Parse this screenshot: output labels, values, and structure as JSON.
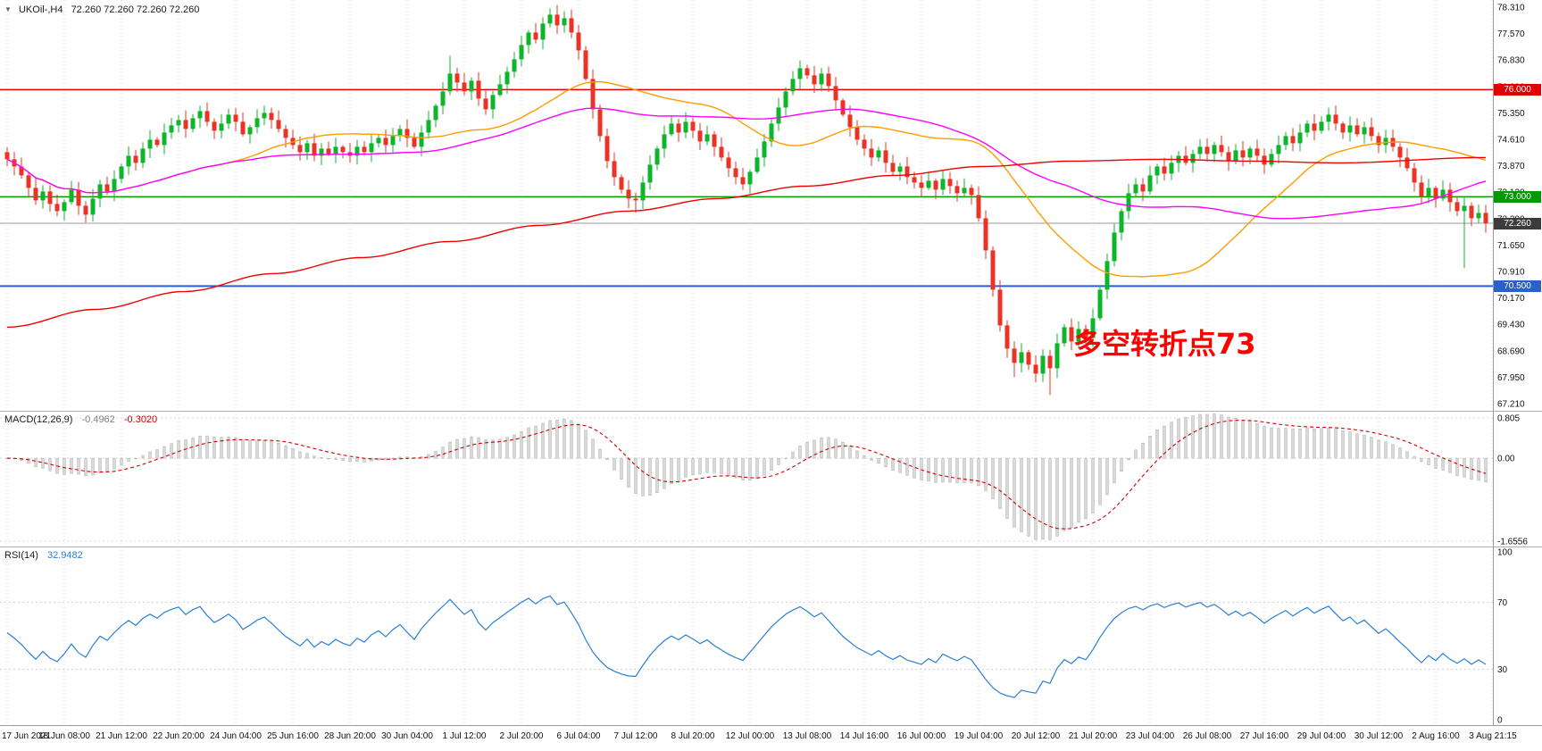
{
  "chart": {
    "marker_icon": "▼",
    "title": "UKOil-,H4",
    "ohlc_text": "72.260 72.260 72.260 72.260"
  },
  "annotation": {
    "text": "多空转折点73",
    "color": "#ff0000"
  },
  "levels": {
    "resistance": {
      "label": "76.000",
      "price": 76.0,
      "color": "#e00000"
    },
    "pivot": {
      "label": "73.000",
      "price": 73.0,
      "color": "#009a00"
    },
    "current": {
      "label": "72.260",
      "price": 72.26,
      "color": "#3c3c3c"
    },
    "support": {
      "label": "70.500",
      "price": 70.5,
      "color": "#2a5fd0"
    }
  },
  "indicators": {
    "macd": {
      "name": "MACD(12,26,9)",
      "main_value": "-0.4962",
      "signal_value": "-0.3020",
      "fast": 12,
      "slow": 26,
      "signal": 9,
      "axis_labels": [
        "0.805",
        "0.00",
        "-1.6556"
      ],
      "axis_values": [
        0.805,
        0,
        -1.6556
      ],
      "histogram_color": "#d9d9d9",
      "histogram_border": "#a6a6a6",
      "signal_color": "#d40000"
    },
    "rsi": {
      "name": "RSI(14)",
      "value": "32.9482",
      "period": 14,
      "levels": [
        70,
        30
      ],
      "axis_labels": [
        "100",
        "70",
        "30",
        "0"
      ],
      "axis_values": [
        100,
        70,
        30,
        0
      ],
      "line_color": "#2a7fd4"
    }
  },
  "price_axis": {
    "max": 78.31,
    "min": 67.21,
    "ticks": [
      "78.310",
      "77.570",
      "76.830",
      "76.090",
      "75.350",
      "74.610",
      "73.870",
      "73.130",
      "72.390",
      "71.650",
      "70.910",
      "70.170",
      "69.430",
      "68.690",
      "67.950",
      "67.210"
    ],
    "tick_values": [
      78.31,
      77.57,
      76.83,
      76.09,
      75.35,
      74.61,
      73.87,
      73.13,
      72.39,
      71.65,
      70.91,
      70.17,
      69.43,
      68.69,
      67.95,
      67.21
    ]
  },
  "chart_data": {
    "type": "candlestick",
    "symbol": "UKOil-",
    "timeframe": "H4",
    "ylim": [
      67.21,
      78.31
    ],
    "bars_per_label": 8,
    "x_labels": [
      "17 Jun 2021",
      "18 Jun 08:00",
      "21 Jun 12:00",
      "22 Jun 20:00",
      "24 Jun 04:00",
      "25 Jun 16:00",
      "28 Jun 20:00",
      "30 Jun 04:00",
      "1 Jul 12:00",
      "2 Jul 20:00",
      "6 Jul 04:00",
      "7 Jul 12:00",
      "8 Jul 20:00",
      "12 Jul 00:00",
      "13 Jul 08:00",
      "14 Jul 16:00",
      "16 Jul 00:00",
      "19 Jul 04:00",
      "20 Jul 12:00",
      "21 Jul 20:00",
      "23 Jul 04:00",
      "26 Jul 08:00",
      "27 Jul 16:00",
      "29 Jul 04:00",
      "30 Jul 12:00",
      "2 Aug 16:00",
      "3 Aug 21:15"
    ],
    "closes": [
      74.05,
      73.85,
      73.6,
      73.25,
      72.9,
      73.15,
      72.8,
      72.6,
      72.85,
      73.2,
      72.75,
      72.5,
      72.95,
      73.35,
      73.15,
      73.5,
      73.85,
      74.15,
      73.95,
      74.35,
      74.6,
      74.45,
      74.8,
      75.0,
      75.15,
      74.9,
      75.2,
      75.4,
      75.1,
      74.85,
      75.05,
      75.3,
      75.1,
      74.75,
      74.95,
      75.2,
      75.35,
      75.15,
      74.9,
      74.65,
      74.45,
      74.25,
      74.5,
      74.15,
      74.35,
      74.2,
      74.4,
      74.25,
      74.15,
      74.4,
      74.25,
      74.5,
      74.65,
      74.45,
      74.7,
      74.9,
      74.65,
      74.4,
      74.8,
      75.15,
      75.55,
      75.95,
      76.45,
      76.2,
      75.95,
      76.25,
      75.75,
      75.45,
      75.85,
      76.15,
      76.5,
      76.85,
      77.25,
      77.6,
      77.4,
      77.85,
      78.1,
      77.8,
      78.0,
      77.6,
      77.1,
      76.3,
      75.45,
      74.7,
      74.0,
      73.55,
      73.2,
      72.95,
      72.9,
      73.4,
      73.9,
      74.35,
      74.75,
      75.05,
      74.8,
      75.1,
      74.85,
      74.55,
      74.75,
      74.4,
      74.1,
      73.8,
      73.55,
      73.35,
      73.7,
      74.1,
      74.55,
      75.05,
      75.5,
      75.95,
      76.3,
      76.6,
      76.4,
      76.15,
      76.45,
      76.1,
      75.7,
      75.3,
      74.95,
      74.6,
      74.35,
      74.1,
      74.3,
      73.95,
      73.7,
      73.85,
      73.55,
      73.4,
      73.25,
      73.45,
      73.2,
      73.5,
      73.3,
      73.1,
      73.25,
      73.05,
      72.4,
      71.5,
      70.4,
      69.4,
      68.75,
      68.35,
      68.65,
      68.3,
      68.05,
      68.55,
      68.2,
      68.9,
      69.35,
      68.95,
      69.3,
      69.05,
      69.6,
      70.4,
      71.2,
      72.0,
      72.6,
      73.1,
      73.35,
      73.15,
      73.6,
      73.85,
      73.65,
      73.95,
      74.15,
      73.95,
      74.2,
      74.4,
      74.2,
      74.45,
      74.25,
      74.0,
      74.3,
      74.1,
      74.35,
      74.15,
      73.9,
      74.2,
      74.45,
      74.7,
      74.5,
      74.8,
      75.05,
      74.85,
      75.1,
      75.3,
      75.05,
      74.8,
      75.0,
      74.75,
      74.95,
      74.7,
      74.45,
      74.65,
      74.4,
      74.1,
      73.8,
      73.4,
      73.0,
      73.25,
      72.95,
      73.2,
      72.85,
      72.6,
      72.75,
      72.4,
      72.55,
      72.26
    ],
    "high_overrides": {
      "27": 75.55,
      "62": 76.95,
      "76": 78.28,
      "78": 78.2,
      "111": 76.82
    },
    "low_overrides": {
      "11": 72.28,
      "88": 72.55,
      "141": 67.95,
      "144": 67.8,
      "146": 67.45,
      "204": 71.0
    },
    "up_color": "#0db52b",
    "down_color": "#ea3326",
    "moving_averages": [
      {
        "name": "ma-fast",
        "type": "sma",
        "period": 30,
        "color": "#ff9c00"
      },
      {
        "name": "ma-mid",
        "type": "sma",
        "period": 60,
        "color": "#ff00ff"
      },
      {
        "name": "ma-slow",
        "type": "points",
        "color": "#f00000",
        "points": [
          [
            0,
            69.35
          ],
          [
            0.06,
            69.85
          ],
          [
            0.12,
            70.35
          ],
          [
            0.18,
            70.85
          ],
          [
            0.24,
            71.3
          ],
          [
            0.3,
            71.75
          ],
          [
            0.36,
            72.2
          ],
          [
            0.42,
            72.6
          ],
          [
            0.48,
            72.95
          ],
          [
            0.54,
            73.3
          ],
          [
            0.6,
            73.6
          ],
          [
            0.66,
            73.85
          ],
          [
            0.72,
            74.0
          ],
          [
            0.78,
            74.05
          ],
          [
            0.84,
            74.0
          ],
          [
            0.9,
            73.95
          ],
          [
            1,
            74.1
          ]
        ]
      }
    ]
  }
}
